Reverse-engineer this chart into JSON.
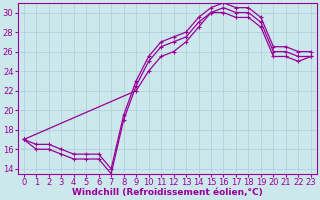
{
  "xlabel": "Windchill (Refroidissement éolien,°C)",
  "background_color": "#cce8ec",
  "line_color": "#990099",
  "grid_color": "#aacdd4",
  "xlim": [
    -0.5,
    23.5
  ],
  "ylim": [
    13.5,
    31
  ],
  "xticks": [
    0,
    1,
    2,
    3,
    4,
    5,
    6,
    7,
    8,
    9,
    10,
    11,
    12,
    13,
    14,
    15,
    16,
    17,
    18,
    19,
    20,
    21,
    22,
    23
  ],
  "yticks": [
    14,
    16,
    18,
    20,
    22,
    24,
    26,
    28,
    30
  ],
  "series": {
    "top_x": [
      0,
      1,
      2,
      3,
      4,
      5,
      6,
      7,
      8,
      9,
      10,
      11,
      12,
      13,
      14,
      15,
      16,
      17,
      18,
      19,
      20,
      21,
      22,
      23
    ],
    "top_y": [
      17,
      16,
      16,
      15.5,
      15,
      15,
      15,
      13.5,
      19,
      22.5,
      25,
      26.5,
      27,
      27.5,
      29,
      30,
      30.5,
      30,
      30,
      29,
      26,
      26,
      25.5,
      25.5
    ],
    "mid_x": [
      0,
      9,
      10,
      11,
      12,
      13,
      14,
      15,
      16,
      17,
      18,
      19,
      20,
      21,
      22,
      23
    ],
    "mid_y": [
      17,
      22,
      24,
      25.5,
      26,
      27,
      28.5,
      30,
      30,
      29.5,
      29.5,
      28.5,
      25.5,
      25.5,
      25,
      25.5
    ],
    "bot_x": [
      0,
      1,
      2,
      3,
      4,
      5,
      6,
      7,
      8,
      9,
      10,
      11,
      12,
      13,
      14,
      15,
      16,
      17,
      18,
      19,
      20,
      21,
      22,
      23
    ],
    "bot_y": [
      17,
      16.5,
      16.5,
      16,
      15.5,
      15.5,
      15.5,
      14,
      19.5,
      23,
      25.5,
      27,
      27.5,
      28,
      29.5,
      30.5,
      31,
      30.5,
      30.5,
      29.5,
      26.5,
      26.5,
      26,
      26
    ]
  },
  "font_size_axis": 6,
  "font_size_xlabel": 6.5,
  "marker_size": 3,
  "linewidth": 0.9
}
